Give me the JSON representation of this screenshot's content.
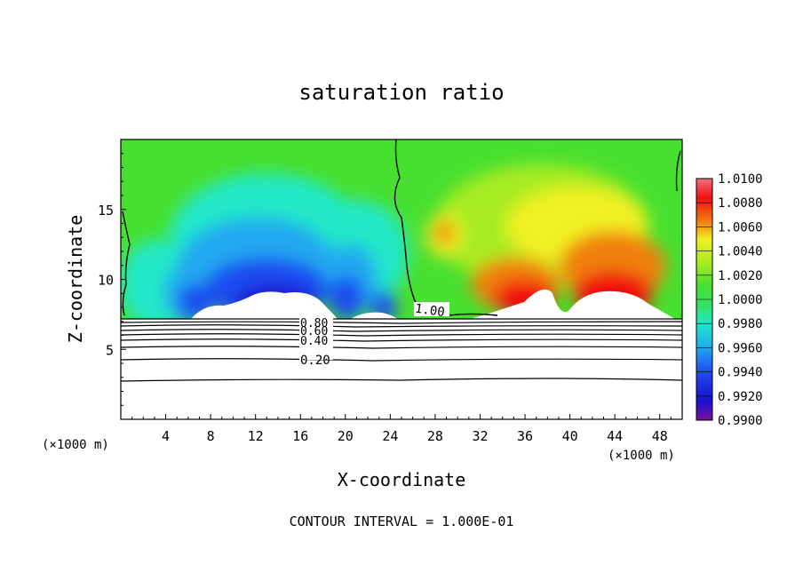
{
  "chart_data": {
    "type": "heatmap",
    "title": "saturation ratio",
    "xlabel": "X-coordinate",
    "ylabel": "Z-coordinate",
    "x_unit_left": "(×1000 m)",
    "x_unit_right": "(×1000 m)",
    "footer": "CONTOUR INTERVAL = 1.000E-01",
    "xlim": [
      0,
      50
    ],
    "ylim": [
      0,
      20
    ],
    "x_ticks": [
      4,
      8,
      12,
      16,
      20,
      24,
      28,
      32,
      36,
      40,
      44,
      48
    ],
    "y_ticks": [
      5,
      10,
      15
    ],
    "colorbar": {
      "labels": [
        "1.0100",
        "1.0080",
        "1.0060",
        "1.0040",
        "1.0020",
        "1.0000",
        "0.9980",
        "0.9960",
        "0.9940",
        "0.9920",
        "0.9900"
      ],
      "range": [
        0.99,
        1.01
      ],
      "colors": [
        "#7a0fa0",
        "#1a0fd0",
        "#1e4cf0",
        "#20a8f0",
        "#20e8c8",
        "#38e060",
        "#48e030",
        "#a8ec20",
        "#f0f020",
        "#f08010",
        "#f01010",
        "#f07080"
      ]
    },
    "contour_labels": [
      {
        "text": "1.00",
        "value": 1.0
      },
      {
        "text": "0.80",
        "value": 0.8
      },
      {
        "text": "0.60",
        "value": 0.6
      },
      {
        "text": "0.40",
        "value": 0.4
      },
      {
        "text": "0.20",
        "value": 0.2
      }
    ]
  }
}
